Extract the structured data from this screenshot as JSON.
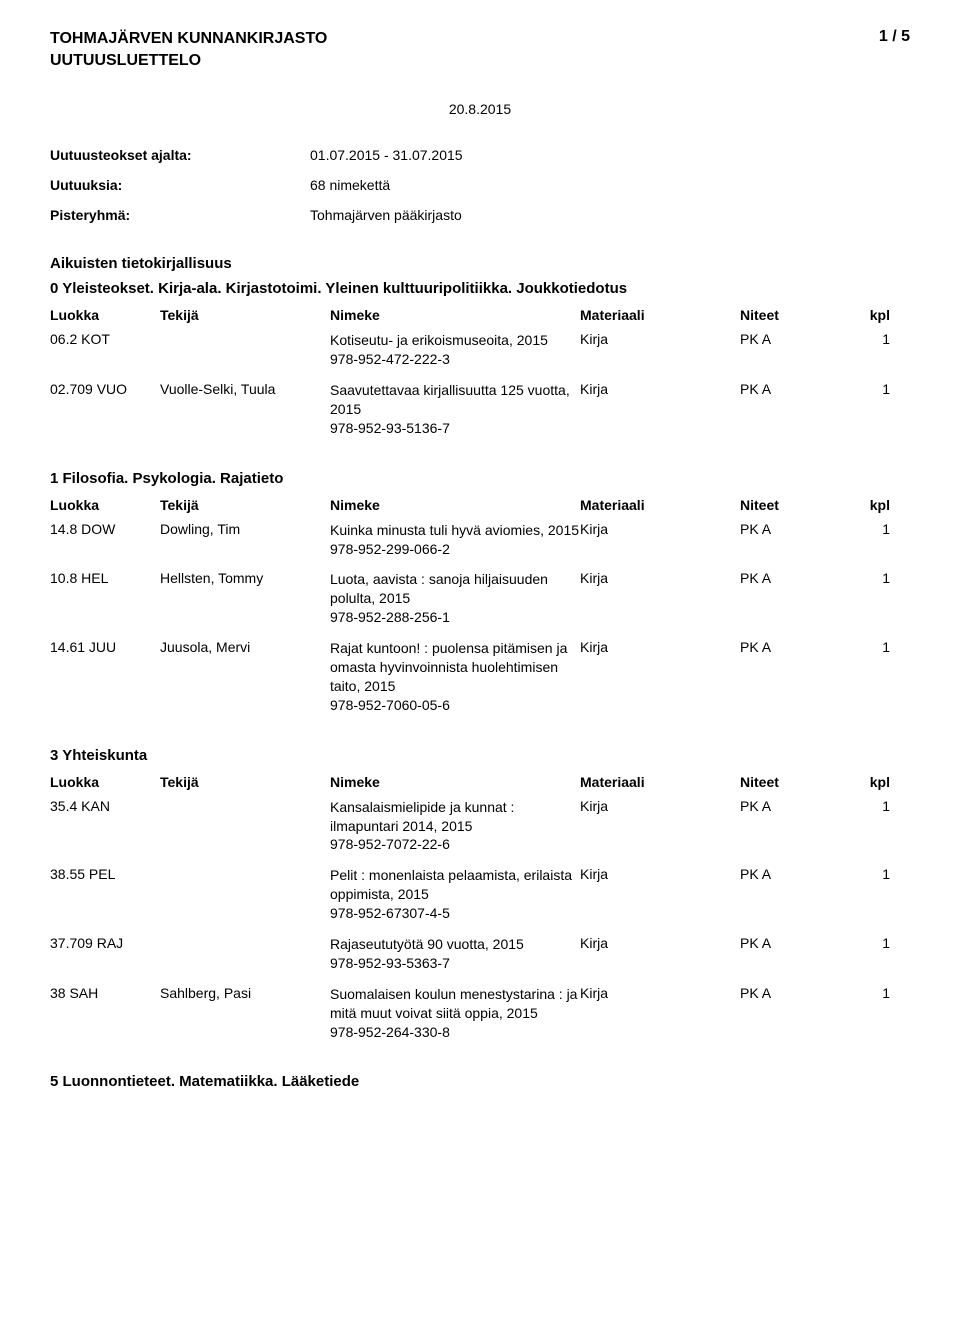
{
  "header": {
    "library_name": "TOHMAJÄRVEN KUNNANKIRJASTO",
    "list_title": "UUTUUSLUETTELO",
    "page_indicator": "1 / 5",
    "report_date": "20.8.2015"
  },
  "meta": {
    "period_label": "Uutuusteokset ajalta:",
    "period_value": "01.07.2015 - 31.07.2015",
    "count_label": "Uutuuksia:",
    "count_value": "68 nimekettä",
    "branch_label": "Pisteryhmä:",
    "branch_value": "Tohmajärven pääkirjasto"
  },
  "columns": {
    "luokka": "Luokka",
    "tekija": "Tekijä",
    "nimeke": "Nimeke",
    "materiaali": "Materiaali",
    "niteet": "Niteet",
    "kpl": "kpl"
  },
  "sections": [
    {
      "title": "Aikuisten tietokirjallisuus",
      "subtitle": "0 Yleisteokset. Kirja-ala. Kirjastotoimi. Yleinen kulttuuripolitiikka. Joukkotiedotus",
      "rows": [
        {
          "luokka": "06.2 KOT",
          "tekija": "",
          "nimeke": "Kotiseutu- ja erikoismuseoita, 2015\n978-952-472-222-3",
          "materiaali": "Kirja",
          "niteet": "PK A",
          "kpl": "1"
        },
        {
          "luokka": "02.709 VUO",
          "tekija": "Vuolle-Selki, Tuula",
          "nimeke": "Saavutettavaa kirjallisuutta 125 vuotta, 2015\n978-952-93-5136-7",
          "materiaali": "Kirja",
          "niteet": "PK A",
          "kpl": "1"
        }
      ]
    },
    {
      "title": "1 Filosofia. Psykologia. Rajatieto",
      "rows": [
        {
          "luokka": "14.8 DOW",
          "tekija": "Dowling, Tim",
          "nimeke": "Kuinka minusta tuli hyvä aviomies, 2015\n978-952-299-066-2",
          "materiaali": "Kirja",
          "niteet": "PK A",
          "kpl": "1"
        },
        {
          "luokka": "10.8 HEL",
          "tekija": "Hellsten, Tommy",
          "nimeke": "Luota, aavista : sanoja hiljaisuuden polulta, 2015\n978-952-288-256-1",
          "materiaali": "Kirja",
          "niteet": "PK A",
          "kpl": "1"
        },
        {
          "luokka": "14.61 JUU",
          "tekija": "Juusola, Mervi",
          "nimeke": "Rajat kuntoon! : puolensa pitämisen ja omasta hyvinvoinnista huolehtimisen taito, 2015\n978-952-7060-05-6",
          "materiaali": "Kirja",
          "niteet": "PK A",
          "kpl": "1"
        }
      ]
    },
    {
      "title": "3 Yhteiskunta",
      "rows": [
        {
          "luokka": "35.4 KAN",
          "tekija": "",
          "nimeke": "Kansalaismielipide ja kunnat : ilmapuntari 2014, 2015\n978-952-7072-22-6",
          "materiaali": "Kirja",
          "niteet": "PK A",
          "kpl": "1"
        },
        {
          "luokka": "38.55 PEL",
          "tekija": "",
          "nimeke": "Pelit : monenlaista pelaamista, erilaista oppimista, 2015\n978-952-67307-4-5",
          "materiaali": "Kirja",
          "niteet": "PK A",
          "kpl": "1"
        },
        {
          "luokka": "37.709 RAJ",
          "tekija": "",
          "nimeke": "Rajaseututyötä 90 vuotta, 2015\n978-952-93-5363-7",
          "materiaali": "Kirja",
          "niteet": "PK A",
          "kpl": "1"
        },
        {
          "luokka": "38 SAH",
          "tekija": "Sahlberg, Pasi",
          "nimeke": "Suomalaisen koulun menestystarina : ja mitä muut voivat siitä oppia, 2015\n978-952-264-330-8",
          "materiaali": "Kirja",
          "niteet": "PK A",
          "kpl": "1"
        }
      ]
    },
    {
      "title": "5 Luonnontieteet. Matematiikka. Lääketiede",
      "rows": []
    }
  ]
}
